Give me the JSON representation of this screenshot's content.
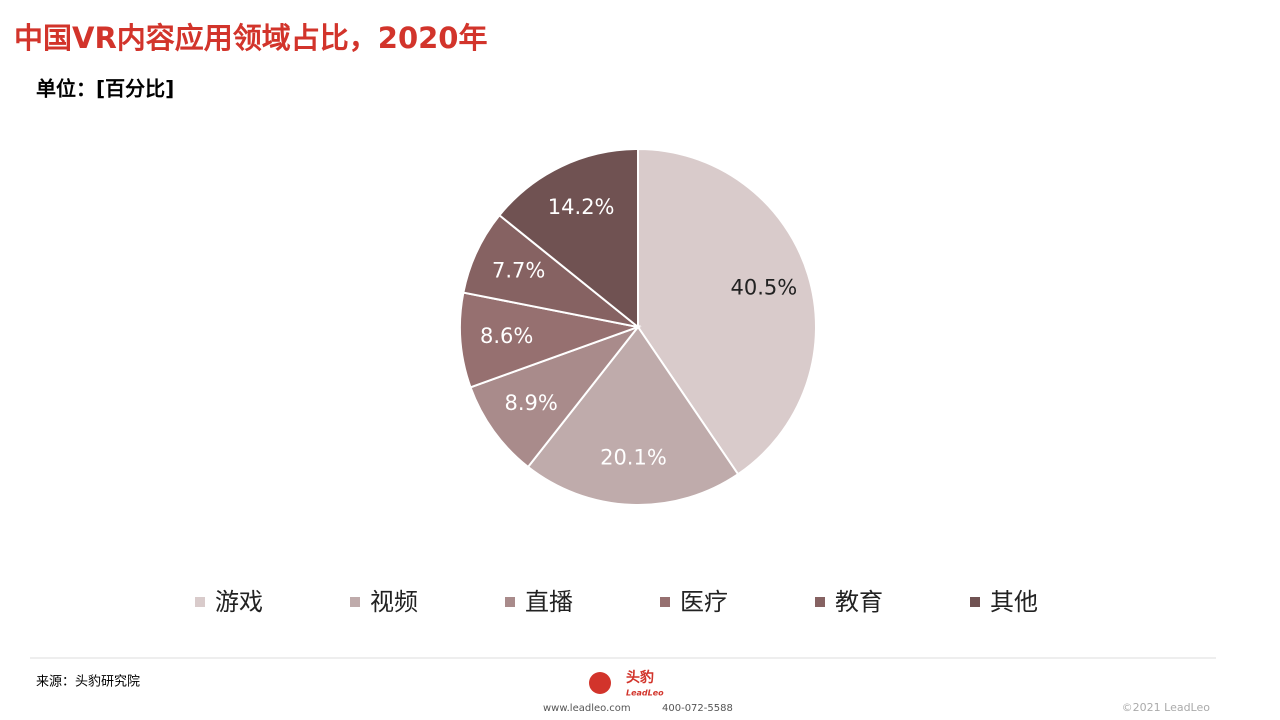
{
  "chart_data": {
    "type": "pie",
    "title": "中国VR内容应用领域占比，2020年",
    "subtitle": "单位：[百分比]",
    "categories": [
      "游戏",
      "视频",
      "直播",
      "医疗",
      "教育",
      "其他"
    ],
    "values": [
      40.5,
      20.1,
      8.9,
      8.6,
      7.7,
      14.2
    ],
    "value_labels": [
      "40.5%",
      "20.1%",
      "8.9%",
      "8.6%",
      "7.7%",
      "14.2%"
    ],
    "colors": [
      "#d9cbcb",
      "#bfabab",
      "#a98b8b",
      "#967070",
      "#866262",
      "#705252"
    ],
    "source": "来源：头豹研究院"
  },
  "footer": {
    "logo": "头豹",
    "logo_sub": "LeadLeo",
    "website": "www.leadleo.com",
    "phone": "400-072-5588",
    "copyright": "©2021 LeadLeo"
  }
}
